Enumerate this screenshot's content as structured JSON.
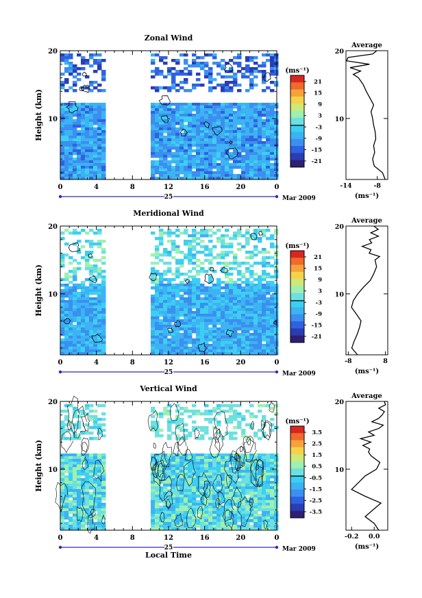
{
  "figure": {
    "date_label": "Mar 2009",
    "bottom_xlabel": "Local Time"
  },
  "colors": {
    "scale": [
      "#2d1f75",
      "#2b3db5",
      "#2f62e0",
      "#3b8ff0",
      "#3cb3f2",
      "#3dcff2",
      "#6ee0e0",
      "#9ef0b0",
      "#cfe87a",
      "#f5d24a",
      "#f6a23a",
      "#ef6a2c",
      "#d8271f"
    ],
    "zero_line": "#000000"
  },
  "chart_data": [
    {
      "type": "heatmap",
      "title": "Zonal Wind",
      "ylabel": "Height (km)",
      "ylim": [
        1,
        20
      ],
      "yticks": [
        "10",
        "20"
      ],
      "xlim": [
        0,
        24
      ],
      "xticks": [
        "0",
        "4",
        "8",
        "12",
        "16",
        "20",
        "0"
      ],
      "day_label": "25",
      "data_gap_hours": [
        5,
        10
      ],
      "colorbar": {
        "unit": "(ms⁻¹)",
        "ticks": [
          "21",
          "15",
          "9",
          "3",
          "-3",
          "-9",
          "-15",
          "-21"
        ],
        "range": [
          -24,
          24
        ],
        "zero_line": true
      },
      "field_levels": [
        {
          "from_height_km": 1,
          "to_height_km": 12.5,
          "typical_ms": [
            -14,
            -4
          ]
        },
        {
          "from_height_km": 14,
          "to_height_km": 19.5,
          "typical_ms": [
            -20,
            -8
          ],
          "sparse": true
        }
      ],
      "average_profile": {
        "title": "Average",
        "xlim": [
          -14,
          -6
        ],
        "xticks": [
          "-14",
          "-8"
        ],
        "xlabel": "(ms⁻¹)",
        "yticks": [
          "10",
          "20"
        ],
        "height_km": [
          1,
          2,
          3,
          4,
          5,
          6,
          7,
          8,
          9,
          10,
          11,
          12,
          13,
          14,
          15,
          16,
          16.5,
          17,
          17.5,
          18,
          18.5,
          19,
          19.5,
          20
        ],
        "value_ms": [
          -6.5,
          -7,
          -8.6,
          -8.9,
          -8.5,
          -8.7,
          -8.3,
          -8.4,
          -8.7,
          -8.9,
          -9.2,
          -8.7,
          -9.4,
          -10.1,
          -10.7,
          -11.6,
          -12.6,
          -11.2,
          -13.2,
          -9.5,
          -13.9,
          -13.6,
          -8.9,
          -8.1
        ]
      }
    },
    {
      "type": "heatmap",
      "title": "Meridional Wind",
      "ylabel": "Height (km)",
      "ylim": [
        1,
        20
      ],
      "yticks": [
        "10",
        "20"
      ],
      "xlim": [
        0,
        24
      ],
      "xticks": [
        "0",
        "4",
        "8",
        "12",
        "16",
        "20",
        "0"
      ],
      "day_label": "25",
      "data_gap_hours": [
        5,
        10
      ],
      "colorbar": {
        "unit": "(ms⁻¹)",
        "ticks": [
          "21",
          "15",
          "9",
          "3",
          "-3",
          "-9",
          "-15",
          "-21"
        ],
        "range": [
          -24,
          24
        ],
        "zero_line": true
      },
      "field_levels": [
        {
          "from_height_km": 1,
          "to_height_km": 11.5,
          "typical_ms": [
            -12,
            -3
          ]
        },
        {
          "from_height_km": 11.5,
          "to_height_km": 19.5,
          "typical_ms": [
            -6,
            4
          ],
          "sparse": true
        }
      ],
      "average_profile": {
        "title": "Average",
        "xlim": [
          -9,
          9
        ],
        "xticks": [
          "-8",
          "8"
        ],
        "xlabel": "(ms⁻¹)",
        "yticks": [
          "10",
          "20"
        ],
        "height_km": [
          1,
          2,
          3,
          4,
          5,
          6,
          7,
          8,
          9,
          10,
          11,
          12,
          13,
          14,
          15,
          15.5,
          16,
          16.5,
          17,
          17.5,
          18,
          18.5,
          19,
          19.5,
          20
        ],
        "value_ms": [
          -4,
          -6.5,
          -5.5,
          -4.2,
          -3.2,
          -2.5,
          -4.5,
          -6.6,
          -5.8,
          -3.9,
          -1.4,
          1.5,
          3,
          4.2,
          3.5,
          5.5,
          1,
          1.8,
          -2,
          2.1,
          1.1,
          5,
          1.7,
          4.9,
          3
        ]
      }
    },
    {
      "type": "heatmap",
      "title": "Vertical Wind",
      "ylabel": "Height (km)",
      "ylim": [
        1,
        20
      ],
      "yticks": [
        "10",
        "20"
      ],
      "xlim": [
        0,
        24
      ],
      "xticks": [
        "0",
        "4",
        "8",
        "12",
        "16",
        "20",
        "0"
      ],
      "xlabel": "Local Time",
      "day_label": "25",
      "data_gap_hours": [
        5,
        10
      ],
      "colorbar": {
        "unit": "(ms⁻¹)",
        "ticks": [
          "3.5",
          "2.5",
          "1.5",
          "0.5",
          "-0.5",
          "-1.5",
          "-2.5",
          "-3.5"
        ],
        "range": [
          -4,
          4
        ],
        "zero_line": true
      },
      "field_levels": [
        {
          "from_height_km": 1,
          "to_height_km": 12.5,
          "typical_ms": [
            -1.4,
            0.8
          ]
        },
        {
          "from_height_km": 14.5,
          "to_height_km": 19.5,
          "typical_ms": [
            -0.4,
            0.4
          ],
          "sparse": true
        }
      ],
      "average_profile": {
        "title": "Average",
        "xlim": [
          -0.25,
          0.12
        ],
        "xticks": [
          "-0.2",
          "0.0"
        ],
        "xlabel": "(ms⁻¹)",
        "yticks": [
          "10",
          "20"
        ],
        "height_km": [
          1,
          2,
          3,
          4,
          5,
          6,
          7,
          8,
          9,
          10,
          11,
          12,
          12.5,
          13,
          13.5,
          14,
          14.5,
          15,
          15.5,
          16,
          16.5,
          17,
          17.5,
          18,
          18.5,
          19,
          19.5,
          20
        ],
        "value_ms": [
          0.04,
          0.0,
          -0.08,
          -0.01,
          0.06,
          -0.08,
          -0.2,
          -0.14,
          -0.08,
          0.02,
          0.05,
          -0.03,
          -0.05,
          -0.04,
          -0.1,
          -0.03,
          -0.12,
          0.0,
          -0.05,
          0.04,
          0.08,
          -0.02,
          0.04,
          0.07,
          0.09,
          0.04,
          0.1,
          0.09
        ]
      }
    }
  ]
}
